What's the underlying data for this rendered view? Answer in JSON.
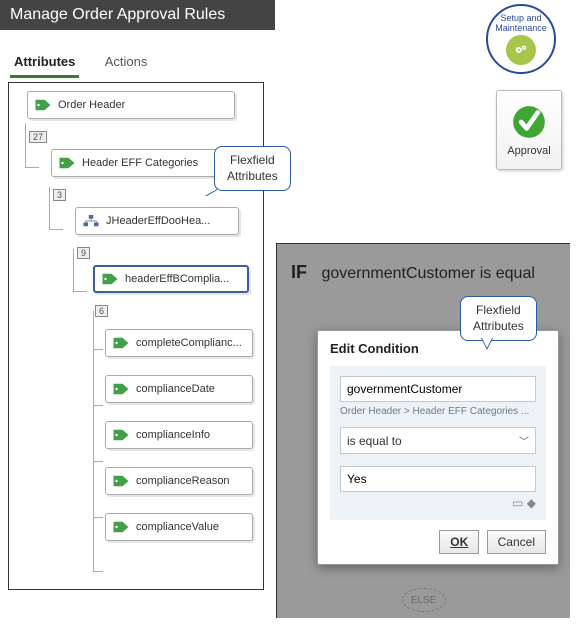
{
  "header": {
    "title": "Manage Order Approval Rules"
  },
  "badges": {
    "setup_line1": "Setup and",
    "setup_line2": "Maintenance",
    "approval_label": "Approval"
  },
  "tabs": {
    "attributes": "Attributes",
    "actions": "Actions"
  },
  "callouts": {
    "flexfield1": "Flexfield\nAttributes",
    "flexfield2": "Flexfield\nAttributes"
  },
  "tree": {
    "root": {
      "label": "Order Header",
      "count": "27"
    },
    "l2": {
      "label": "Header EFF Categories",
      "count": "3"
    },
    "l3": {
      "label": "JHeaderEffDooHea...",
      "count": "9"
    },
    "l4": {
      "label": "headerEffBComplia...",
      "count": "6"
    },
    "leaves": [
      "completeComplianc...",
      "complianceDate",
      "complianceInfo",
      "complianceReason",
      "complianceValue"
    ]
  },
  "rule": {
    "if_kw": "IF",
    "if_expr": "governmentCustomer is equal ",
    "edit_title": "Edit Condition",
    "attr_value": "governmentCustomer",
    "breadcrumb": "Order Header > Header EFF Categories ...",
    "operator": "is equal to",
    "value": "Yes",
    "ok": "OK",
    "cancel": "Cancel",
    "else": "ELSE"
  },
  "colors": {
    "tag_green": "#44a048",
    "select_blue": "#3b5fa0"
  }
}
